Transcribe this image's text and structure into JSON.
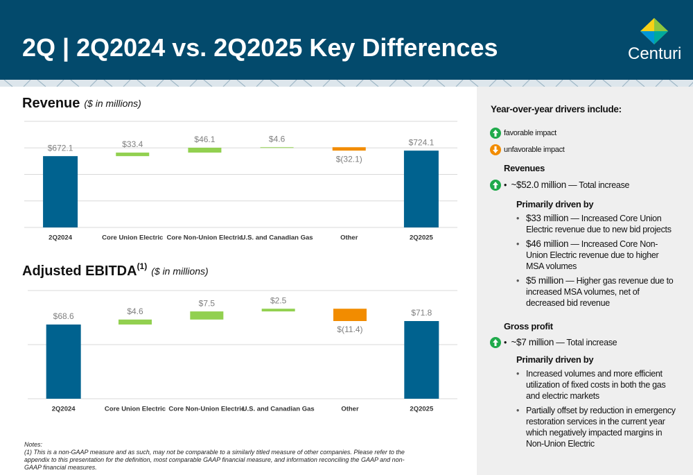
{
  "header": {
    "title": "2Q | 2Q2024 vs. 2Q2025 Key Differences",
    "logo": "Centuri"
  },
  "chart_data": [
    {
      "type": "waterfall",
      "title": "Revenue",
      "subtitle": "($ in millions)",
      "categories": [
        "2Q2024",
        "Core Union Electric",
        "Core Non-Union Electric",
        "U.S. and Canadian Gas",
        "Other",
        "2Q2025"
      ],
      "values": [
        672.1,
        33.4,
        46.1,
        4.6,
        -32.1,
        724.1
      ],
      "value_labels": [
        "$672.1",
        "$33.4",
        "$46.1",
        "$4.6",
        "$(32.1)",
        "$724.1"
      ],
      "colors": {
        "total": "#00628f",
        "increase": "#92d050",
        "decrease": "#f28c00"
      },
      "ylim": [
        0,
        1000
      ],
      "yticks": [
        0,
        250,
        500,
        750,
        1000
      ],
      "grid": true
    },
    {
      "type": "waterfall",
      "title": "Adjusted EBITDA",
      "title_sup": "(1)",
      "subtitle": "($ in millions)",
      "categories": [
        "2Q2024",
        "Core Union Electric",
        "Core Non-Union Electric",
        "U.S. and Canadian Gas",
        "Other",
        "2Q2025"
      ],
      "values": [
        68.6,
        4.6,
        7.5,
        2.5,
        -11.4,
        71.8
      ],
      "value_labels": [
        "$68.6",
        "$4.6",
        "$7.5",
        "$2.5",
        "$(11.4)",
        "$71.8"
      ],
      "colors": {
        "total": "#00628f",
        "increase": "#92d050",
        "decrease": "#f28c00"
      },
      "ylim": [
        0,
        100
      ],
      "yticks": [
        0,
        50,
        100
      ],
      "grid": true
    }
  ],
  "notes": {
    "heading": "Notes:",
    "text": "(1) This is a non-GAAP measure and as such, may not be comparable to a similarly titled measure of other companies. Please refer to the appendix to this presentation for the definition, most comparable GAAP financial measure, and information reconciling the GAAP and non-GAAP financial measures."
  },
  "sidebar": {
    "title": "Year-over-year drivers include:",
    "legend": [
      "favorable impact",
      "unfavorable impact"
    ],
    "sections": [
      {
        "heading": "Revenues",
        "total_amount": "~$52.0 million",
        "total_text": "— Total increase",
        "sub_heading": "Primarily driven by",
        "items": [
          {
            "amount": "$33 million",
            "text": "— Increased Core Union Electric revenue due to new bid projects"
          },
          {
            "amount": "$46 million",
            "text": "— Increased Core Non-Union Electric revenue due to higher MSA volumes"
          },
          {
            "amount": "$5 million",
            "text": "— Higher gas revenue due to increased MSA volumes, net of decreased bid revenue"
          }
        ]
      },
      {
        "heading": "Gross profit",
        "total_amount": "~$7 million",
        "total_text": "— Total increase",
        "sub_heading": "Primarily driven by",
        "items": [
          {
            "text": "Increased volumes and more efficient utilization of fixed costs in both the gas and electric markets"
          },
          {
            "text": "Partially offset by reduction in emergency restoration services in the current year which negatively impacted margins in Non-Union Electric"
          }
        ]
      }
    ]
  }
}
